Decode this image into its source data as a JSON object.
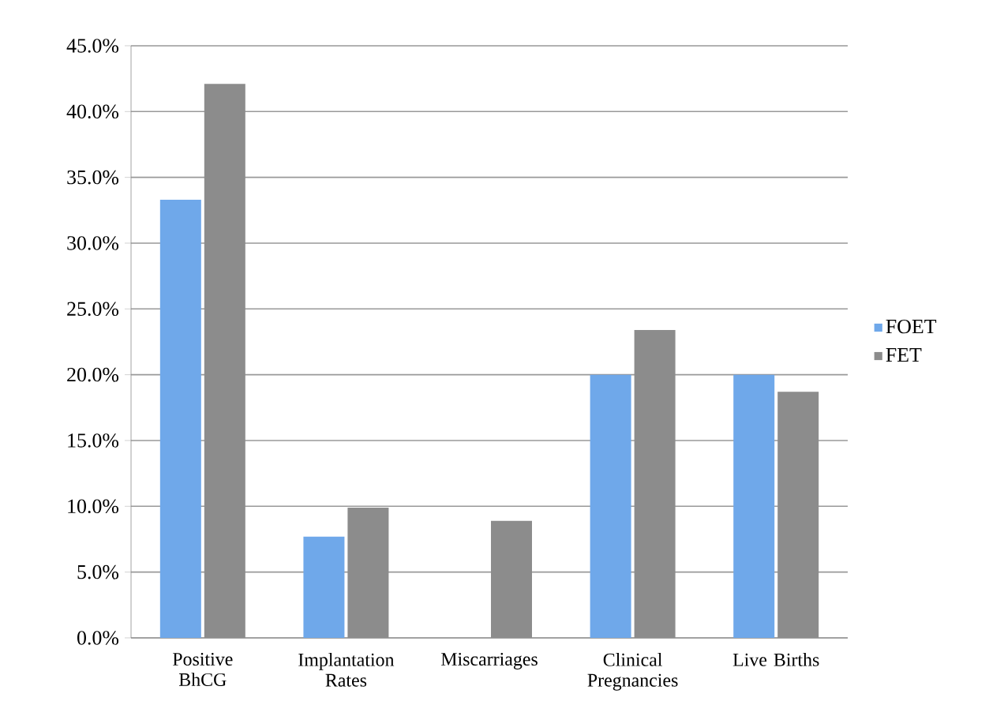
{
  "chart_data": {
    "type": "bar",
    "categories": [
      "Positive BhCG",
      "Implantation Rates",
      "Miscarriages",
      "Clinical Pregnancies",
      "Live Births"
    ],
    "series": [
      {
        "name": "FOET",
        "color": "#6fa8ea",
        "values": [
          33.3,
          7.7,
          0,
          20.0,
          20.0
        ]
      },
      {
        "name": "FET",
        "color": "#8c8c8c",
        "values": [
          42.1,
          9.9,
          8.9,
          23.4,
          18.7
        ]
      }
    ],
    "ylim": [
      0,
      45
    ],
    "yticks": [
      {
        "value": 0,
        "label": "0.0%"
      },
      {
        "value": 5,
        "label": "5.0%"
      },
      {
        "value": 10,
        "label": "10.0%"
      },
      {
        "value": 15,
        "label": "15.0%"
      },
      {
        "value": 20,
        "label": "20.0%"
      },
      {
        "value": 25,
        "label": "25.0%"
      },
      {
        "value": 30,
        "label": "30.0%"
      },
      {
        "value": 35,
        "label": "35.0%"
      },
      {
        "value": 40,
        "label": "40.0%"
      },
      {
        "value": 45,
        "label": "45.0%"
      }
    ],
    "grid": "y",
    "legend": "right"
  }
}
